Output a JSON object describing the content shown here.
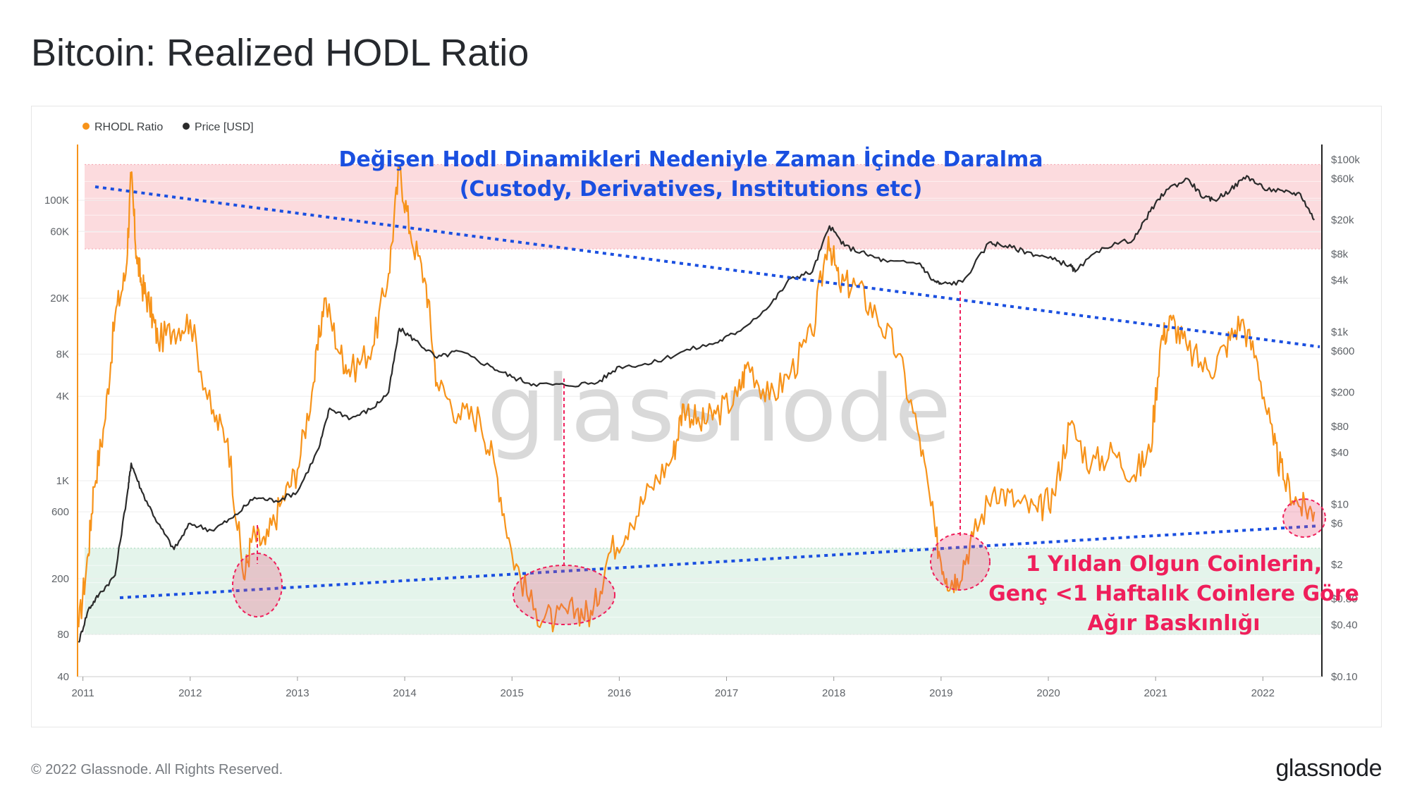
{
  "page": {
    "title": "Bitcoin: Realized HODL Ratio",
    "copyright": "© 2022 Glassnode. All Rights Reserved.",
    "logo": "glassnode",
    "watermark": "glassnode"
  },
  "colors": {
    "rhodl": "#f7931a",
    "price": "#2b2b2b",
    "trend": "#1a4fe0",
    "annotation_red": "#ef1f5b",
    "red_zone": "#fbd5d8",
    "green_zone": "#dff2e8"
  },
  "annotations": {
    "top_line1": "Değişen Hodl Dinamikleri Nedeniyle Zaman İçinde Daralma",
    "top_line2": "(Custody, Derivatives, Institutions etc)",
    "bottom_line1": "1 Yıldan Olgun Coinlerin,",
    "bottom_line2": "Genç <1 Haftalık Coinlere Göre",
    "bottom_line3": "Ağır Baskınlığı"
  },
  "chart_data": {
    "type": "line",
    "title": "Bitcoin: Realized HODL Ratio",
    "legend": [
      {
        "name": "RHODL Ratio",
        "color": "#f7931a"
      },
      {
        "name": "Price [USD]",
        "color": "#2b2b2b"
      }
    ],
    "legend_position": "top-left",
    "x_ticks": [
      "2011",
      "2012",
      "2013",
      "2014",
      "2015",
      "2016",
      "2017",
      "2018",
      "2019",
      "2020",
      "2021",
      "2022"
    ],
    "x_range": [
      2010.95,
      2022.55
    ],
    "y_left": {
      "scale": "log",
      "range": [
        40,
        250000
      ],
      "ticks": [
        "40",
        "80",
        "200",
        "600",
        "1K",
        "4K",
        "8K",
        "20K",
        "60K",
        "100K"
      ],
      "tick_values": [
        40,
        80,
        200,
        600,
        1000,
        4000,
        8000,
        20000,
        60000,
        100000
      ]
    },
    "y_right": {
      "scale": "log",
      "range": [
        0.1,
        150000
      ],
      "ticks": [
        "$0.10",
        "$0.40",
        "$0.80",
        "$2",
        "$6",
        "$10",
        "$40",
        "$80",
        "$200",
        "$600",
        "$1k",
        "$4k",
        "$8k",
        "$20k",
        "$60k",
        "$100k"
      ],
      "tick_values": [
        0.1,
        0.4,
        0.8,
        2,
        6,
        10,
        40,
        80,
        200,
        600,
        1000,
        4000,
        8000,
        20000,
        60000,
        100000
      ]
    },
    "bands": [
      {
        "name": "top zone",
        "y_from": 45000,
        "y_to": 180000,
        "color": "#fbd5d8"
      },
      {
        "name": "bottom zone",
        "y_from": 80,
        "y_to": 330,
        "color": "#dff2e8"
      }
    ],
    "series": [
      {
        "name": "RHODL Ratio",
        "axis": "left",
        "x": [
          2010.96,
          2011.05,
          2011.1,
          2011.2,
          2011.3,
          2011.4,
          2011.45,
          2011.5,
          2011.55,
          2011.62,
          2011.7,
          2011.85,
          2012.0,
          2012.2,
          2012.35,
          2012.5,
          2012.58,
          2012.7,
          2012.85,
          2013.0,
          2013.15,
          2013.25,
          2013.4,
          2013.5,
          2013.7,
          2013.85,
          2013.95,
          2014.05,
          2014.2,
          2014.3,
          2014.5,
          2014.7,
          2014.85,
          2015.0,
          2015.2,
          2015.4,
          2015.6,
          2015.75,
          2015.9,
          2016.1,
          2016.3,
          2016.5,
          2016.6,
          2016.75,
          2016.9,
          2017.1,
          2017.2,
          2017.4,
          2017.6,
          2017.8,
          2017.95,
          2018.05,
          2018.2,
          2018.4,
          2018.6,
          2018.8,
          2018.95,
          2019.05,
          2019.15,
          2019.3,
          2019.5,
          2019.7,
          2019.9,
          2020.05,
          2020.2,
          2020.4,
          2020.6,
          2020.8,
          2020.95,
          2021.05,
          2021.15,
          2021.3,
          2021.5,
          2021.65,
          2021.8,
          2021.95,
          2022.1,
          2022.2,
          2022.35,
          2022.48
        ],
        "values": [
          90,
          300,
          900,
          2500,
          15000,
          30000,
          150000,
          40000,
          25000,
          18000,
          10000,
          12000,
          14000,
          3000,
          2000,
          200,
          400,
          350,
          700,
          1200,
          5000,
          20000,
          8000,
          6000,
          9000,
          30000,
          170000,
          60000,
          25000,
          5000,
          3000,
          2800,
          1200,
          300,
          120,
          100,
          120,
          110,
          300,
          500,
          900,
          1500,
          3500,
          2500,
          3000,
          4000,
          7000,
          3800,
          6000,
          11000,
          55000,
          25000,
          25000,
          15000,
          8000,
          2000,
          400,
          200,
          200,
          400,
          900,
          700,
          600,
          800,
          2500,
          1300,
          1600,
          1100,
          1600,
          10000,
          14000,
          8500,
          6000,
          9000,
          14000,
          7000,
          1800,
          1000,
          650,
          600
        ]
      },
      {
        "name": "Price [USD]",
        "axis": "right",
        "x": [
          2010.96,
          2011.05,
          2011.15,
          2011.3,
          2011.42,
          2011.45,
          2011.55,
          2011.7,
          2011.85,
          2012.0,
          2012.2,
          2012.4,
          2012.6,
          2012.8,
          2013.0,
          2013.2,
          2013.3,
          2013.5,
          2013.7,
          2013.85,
          2013.95,
          2014.1,
          2014.3,
          2014.5,
          2014.8,
          2015.0,
          2015.2,
          2015.5,
          2015.8,
          2016.0,
          2016.3,
          2016.6,
          2016.9,
          2017.1,
          2017.4,
          2017.6,
          2017.8,
          2017.96,
          2018.1,
          2018.3,
          2018.5,
          2018.8,
          2018.92,
          2019.0,
          2019.2,
          2019.45,
          2019.6,
          2019.8,
          2020.0,
          2020.2,
          2020.25,
          2020.5,
          2020.8,
          2020.95,
          2021.1,
          2021.3,
          2021.45,
          2021.55,
          2021.7,
          2021.85,
          2022.0,
          2022.2,
          2022.35,
          2022.48
        ],
        "values": [
          0.25,
          0.6,
          0.9,
          1.5,
          15,
          30,
          14,
          6,
          3,
          6,
          5,
          7,
          12,
          11,
          14,
          45,
          130,
          100,
          130,
          200,
          1100,
          800,
          500,
          600,
          400,
          300,
          250,
          240,
          260,
          400,
          430,
          600,
          750,
          1000,
          2000,
          4200,
          5000,
          17000,
          10000,
          8000,
          6500,
          6300,
          4000,
          3600,
          3800,
          11000,
          10000,
          8500,
          7200,
          6000,
          5000,
          9500,
          12000,
          25000,
          45000,
          60000,
          36000,
          34000,
          45000,
          65000,
          47000,
          42000,
          40000,
          20000
        ]
      }
    ]
  }
}
